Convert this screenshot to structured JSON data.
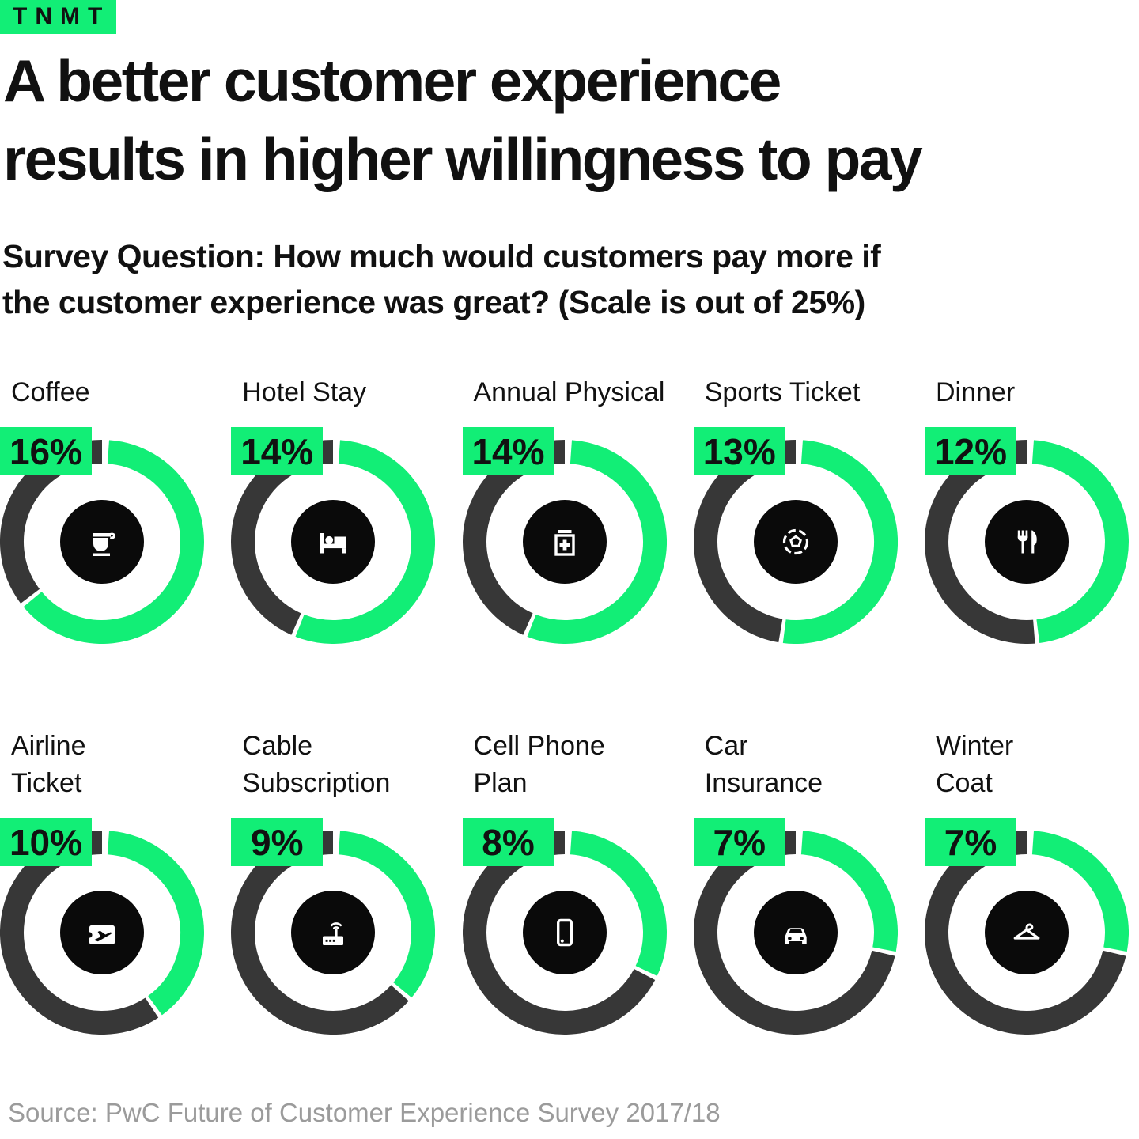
{
  "brand": {
    "logo_text": "TNMT",
    "green": "#12EE76",
    "remainder_color": "#373737",
    "icon_circle_color": "#0a0a0a"
  },
  "header": {
    "title_line1": "A better customer experience",
    "title_line2": "results in higher willingness to pay",
    "subtitle_line1": "Survey Question: How much would customers pay more if",
    "subtitle_line2": "the customer experience was great? (Scale is out of 25%)"
  },
  "chart_data": {
    "type": "pie",
    "variant": "donut-grid",
    "scale_max_percent": 25,
    "unit": "%",
    "colors": {
      "filled": "#12EE76",
      "remainder": "#373737"
    },
    "items": [
      {
        "label": "Coffee",
        "value": 16,
        "display": "16%",
        "icon": "coffee-cup-icon"
      },
      {
        "label": "Hotel Stay",
        "value": 14,
        "display": "14%",
        "icon": "bed-icon"
      },
      {
        "label": "Annual Physical",
        "value": 14,
        "display": "14%",
        "icon": "first-aid-kit-icon"
      },
      {
        "label": "Sports Ticket",
        "value": 13,
        "display": "13%",
        "icon": "soccer-ball-icon"
      },
      {
        "label": "Dinner",
        "value": 12,
        "display": "12%",
        "icon": "fork-knife-icon"
      },
      {
        "label": "Airline\nTicket",
        "value": 10,
        "display": "10%",
        "icon": "airline-ticket-icon"
      },
      {
        "label": "Cable\nSubscription",
        "value": 9,
        "display": "9%",
        "icon": "router-icon"
      },
      {
        "label": "Cell Phone\nPlan",
        "value": 8,
        "display": "8%",
        "icon": "smartphone-icon"
      },
      {
        "label": "Car\nInsurance",
        "value": 7,
        "display": "7%",
        "icon": "car-icon"
      },
      {
        "label": "Winter\nCoat",
        "value": 7,
        "display": "7%",
        "icon": "hanger-icon"
      }
    ]
  },
  "footer": {
    "source": "Source: PwC Future of Customer Experience Survey 2017/18"
  }
}
